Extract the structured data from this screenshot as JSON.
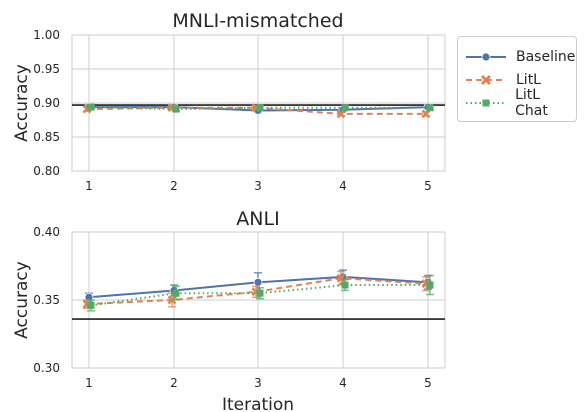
{
  "chart_data": [
    {
      "type": "line",
      "title": "MNLI-mismatched",
      "xlabel": "",
      "ylabel": "Accuracy",
      "x": [
        1,
        2,
        3,
        4,
        5
      ],
      "ylim": [
        0.8,
        1.0
      ],
      "yticks": [
        "1.00",
        "0.95",
        "0.90",
        "0.85",
        "0.80"
      ],
      "xticks": [
        "1",
        "2",
        "3",
        "4",
        "5"
      ],
      "reference_line": 0.897,
      "series": [
        {
          "name": "Baseline",
          "values": [
            0.894,
            0.894,
            0.889,
            0.89,
            0.894
          ],
          "err": [
            0.004,
            0.002,
            0.003,
            0.003,
            0.003
          ]
        },
        {
          "name": "LitL",
          "values": [
            0.891,
            0.893,
            0.893,
            0.884,
            0.884
          ],
          "err": [
            0.003,
            0.003,
            0.003,
            0.003,
            0.003
          ]
        },
        {
          "name": "LitL Chat",
          "values": [
            0.894,
            0.891,
            0.893,
            0.893,
            0.893
          ],
          "err": [
            0.003,
            0.003,
            0.003,
            0.003,
            0.003
          ]
        }
      ],
      "grid": true
    },
    {
      "type": "line",
      "title": "ANLI",
      "xlabel": "Iteration",
      "ylabel": "Accuracy",
      "x": [
        1,
        2,
        3,
        4,
        5
      ],
      "ylim": [
        0.3,
        0.4
      ],
      "yticks": [
        "0.40",
        "0.35",
        "0.30"
      ],
      "xticks": [
        "1",
        "2",
        "3",
        "4",
        "5"
      ],
      "reference_line": 0.336,
      "series": [
        {
          "name": "Baseline",
          "values": [
            0.352,
            0.357,
            0.363,
            0.367,
            0.363
          ],
          "err": [
            0.003,
            0.004,
            0.007,
            0.005,
            0.005
          ]
        },
        {
          "name": "LitL",
          "values": [
            0.347,
            0.35,
            0.356,
            0.366,
            0.362
          ],
          "err": [
            0.003,
            0.005,
            0.004,
            0.005,
            0.005
          ]
        },
        {
          "name": "LitL Chat",
          "values": [
            0.346,
            0.355,
            0.355,
            0.361,
            0.361
          ],
          "err": [
            0.004,
            0.005,
            0.004,
            0.004,
            0.007
          ]
        }
      ],
      "grid": true
    }
  ],
  "legend": {
    "placement": "right",
    "items": [
      "Baseline",
      "LitL",
      "LitL Chat"
    ]
  },
  "colors": {
    "Baseline": "#4c72b0",
    "LitL": "#dd8452",
    "LitL Chat": "#55a868",
    "grid": "#cccccc",
    "text": "#262626",
    "reference": "#1f1f1f"
  },
  "styles": {
    "Baseline": {
      "dash": "",
      "marker": "circle"
    },
    "LitL": {
      "dash": "6,4",
      "marker": "x"
    },
    "LitL Chat": {
      "dash": "1.5,3",
      "marker": "square"
    }
  }
}
